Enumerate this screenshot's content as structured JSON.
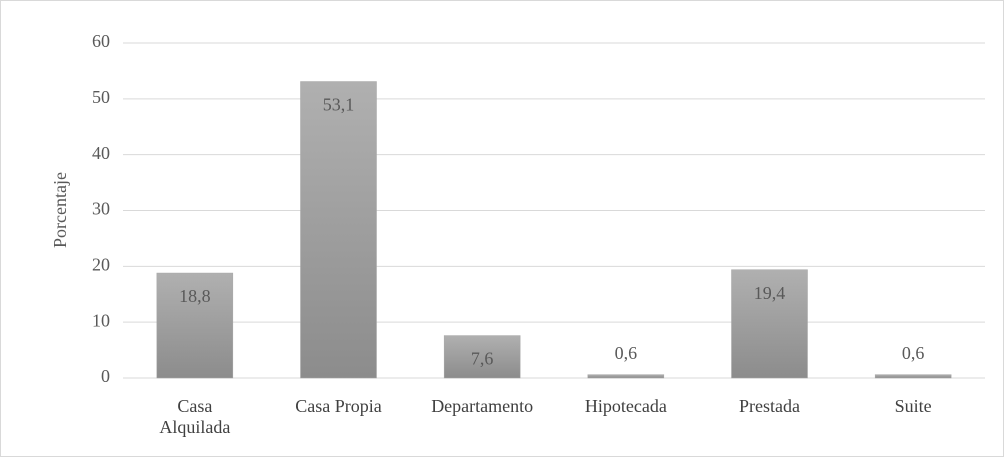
{
  "chart_data": {
    "type": "bar",
    "y_axis_label": "Porcentaje",
    "categories": [
      "Casa Alquilada",
      "Casa Propia",
      "Departamento",
      "Hipotecada",
      "Prestada",
      "Suite"
    ],
    "values": [
      18.8,
      53.1,
      7.6,
      0.6,
      19.4,
      0.6
    ],
    "value_labels": [
      "18,8",
      "53,1",
      "7,6",
      "0,6",
      "19,4",
      "0,6"
    ],
    "color": "#a6a6a6",
    "ylim": [
      0,
      60
    ],
    "yticks": [
      0,
      10,
      20,
      30,
      40,
      50,
      60
    ],
    "grid": true
  }
}
